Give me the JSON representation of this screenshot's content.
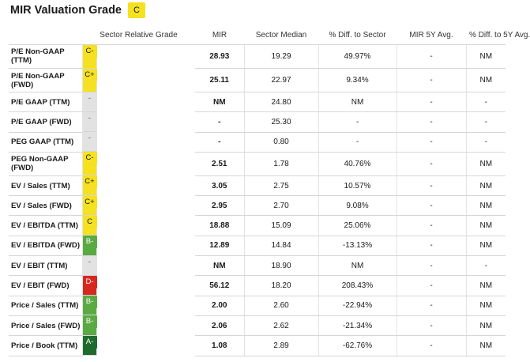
{
  "title": "MIR Valuation Grade",
  "overall_grade": {
    "label": "C",
    "bg": "#f5e11f",
    "fg": "#1a1a1a"
  },
  "columns": [
    "",
    "Sector Relative Grade",
    "MIR",
    "Sector Median",
    "% Diff. to Sector",
    "MIR 5Y Avg.",
    "% Diff. to 5Y Avg."
  ],
  "colors": {
    "C-": {
      "bg": "#f5e11f",
      "fg": "#1a1a1a"
    },
    "C+": {
      "bg": "#f5e11f",
      "fg": "#1a1a1a"
    },
    "C": {
      "bg": "#f5e11f",
      "fg": "#1a1a1a"
    },
    "-": {
      "bg": "#e2e2e2",
      "fg": "#555555"
    },
    "B-": {
      "bg": "#5aaa43",
      "fg": "#ffffff"
    },
    "D-": {
      "bg": "#d7281f",
      "fg": "#ffffff"
    },
    "A-": {
      "bg": "#1f6b2e",
      "fg": "#ffffff"
    }
  },
  "rows": [
    {
      "metric": "P/E Non-GAAP (TTM)",
      "grade": "C-",
      "mir": "28.93",
      "median": "19.29",
      "diff": "49.97%",
      "avg5y": "-",
      "diff5y": "NM",
      "tall": true
    },
    {
      "metric": "P/E Non-GAAP (FWD)",
      "grade": "C+",
      "mir": "25.11",
      "median": "22.97",
      "diff": "9.34%",
      "avg5y": "-",
      "diff5y": "NM",
      "tall": true
    },
    {
      "metric": "P/E GAAP (TTM)",
      "grade": "-",
      "mir": "NM",
      "median": "24.80",
      "diff": "NM",
      "avg5y": "-",
      "diff5y": "-",
      "tall": false
    },
    {
      "metric": "P/E GAAP (FWD)",
      "grade": "-",
      "mir": "-",
      "median": "25.30",
      "diff": "-",
      "avg5y": "-",
      "diff5y": "-",
      "tall": false
    },
    {
      "metric": "PEG GAAP (TTM)",
      "grade": "-",
      "mir": "-",
      "median": "0.80",
      "diff": "-",
      "avg5y": "-",
      "diff5y": "-",
      "tall": false
    },
    {
      "metric": "PEG Non-GAAP (FWD)",
      "grade": "C-",
      "mir": "2.51",
      "median": "1.78",
      "diff": "40.76%",
      "avg5y": "-",
      "diff5y": "NM",
      "tall": true
    },
    {
      "metric": "EV / Sales (TTM)",
      "grade": "C+",
      "mir": "3.05",
      "median": "2.75",
      "diff": "10.57%",
      "avg5y": "-",
      "diff5y": "NM",
      "tall": false
    },
    {
      "metric": "EV / Sales (FWD)",
      "grade": "C+",
      "mir": "2.95",
      "median": "2.70",
      "diff": "9.08%",
      "avg5y": "-",
      "diff5y": "NM",
      "tall": false
    },
    {
      "metric": "EV / EBITDA (TTM)",
      "grade": "C",
      "mir": "18.88",
      "median": "15.09",
      "diff": "25.06%",
      "avg5y": "-",
      "diff5y": "NM",
      "tall": false
    },
    {
      "metric": "EV / EBITDA (FWD)",
      "grade": "B-",
      "mir": "12.89",
      "median": "14.84",
      "diff": "-13.13%",
      "avg5y": "-",
      "diff5y": "NM",
      "tall": false
    },
    {
      "metric": "EV / EBIT (TTM)",
      "grade": "-",
      "mir": "NM",
      "median": "18.90",
      "diff": "NM",
      "avg5y": "-",
      "diff5y": "-",
      "tall": false
    },
    {
      "metric": "EV / EBIT (FWD)",
      "grade": "D-",
      "mir": "56.12",
      "median": "18.20",
      "diff": "208.43%",
      "avg5y": "-",
      "diff5y": "NM",
      "tall": false
    },
    {
      "metric": "Price / Sales (TTM)",
      "grade": "B-",
      "mir": "2.00",
      "median": "2.60",
      "diff": "-22.94%",
      "avg5y": "-",
      "diff5y": "NM",
      "tall": false
    },
    {
      "metric": "Price / Sales (FWD)",
      "grade": "B-",
      "mir": "2.06",
      "median": "2.62",
      "diff": "-21.34%",
      "avg5y": "-",
      "diff5y": "NM",
      "tall": false
    },
    {
      "metric": "Price / Book (TTM)",
      "grade": "A-",
      "mir": "1.08",
      "median": "2.89",
      "diff": "-62.76%",
      "avg5y": "-",
      "diff5y": "NM",
      "tall": false
    }
  ]
}
